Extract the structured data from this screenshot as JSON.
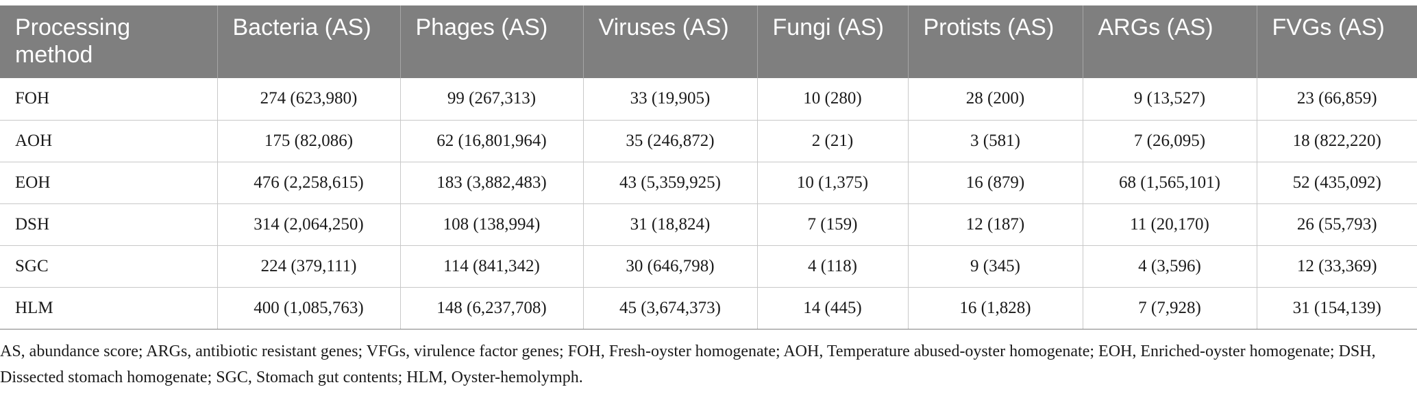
{
  "table": {
    "headers": [
      "Processing method",
      "Bacteria (AS)",
      "Phages (AS)",
      "Viruses (AS)",
      "Fungi (AS)",
      "Protists (AS)",
      "ARGs (AS)",
      "FVGs (AS)"
    ],
    "rows": [
      [
        "FOH",
        "274 (623,980)",
        "99 (267,313)",
        "33 (19,905)",
        "10 (280)",
        "28 (200)",
        "9 (13,527)",
        "23 (66,859)"
      ],
      [
        "AOH",
        "175 (82,086)",
        "62 (16,801,964)",
        "35 (246,872)",
        "2 (21)",
        "3 (581)",
        "7 (26,095)",
        "18 (822,220)"
      ],
      [
        "EOH",
        "476 (2,258,615)",
        "183 (3,882,483)",
        "43 (5,359,925)",
        "10 (1,375)",
        "16 (879)",
        "68 (1,565,101)",
        "52 (435,092)"
      ],
      [
        "DSH",
        "314 (2,064,250)",
        "108 (138,994)",
        "31 (18,824)",
        "7 (159)",
        "12 (187)",
        "11 (20,170)",
        "26 (55,793)"
      ],
      [
        "SGC",
        "224 (379,111)",
        "114 (841,342)",
        "30 (646,798)",
        "4 (118)",
        "9 (345)",
        "4 (3,596)",
        "12 (33,369)"
      ],
      [
        "HLM",
        "400 (1,085,763)",
        "148 (6,237,708)",
        "45 (3,674,373)",
        "14 (445)",
        "16 (1,828)",
        "7 (7,928)",
        "31 (154,139)"
      ]
    ]
  },
  "footnote": "AS, abundance score; ARGs, antibiotic resistant genes; VFGs, virulence factor genes; FOH, Fresh-oyster homogenate; AOH, Temperature abused-oyster homogenate; EOH, Enriched-oyster homogenate; DSH, Dissected stomach homogenate; SGC, Stomach gut contents; HLM, Oyster-hemolymph."
}
